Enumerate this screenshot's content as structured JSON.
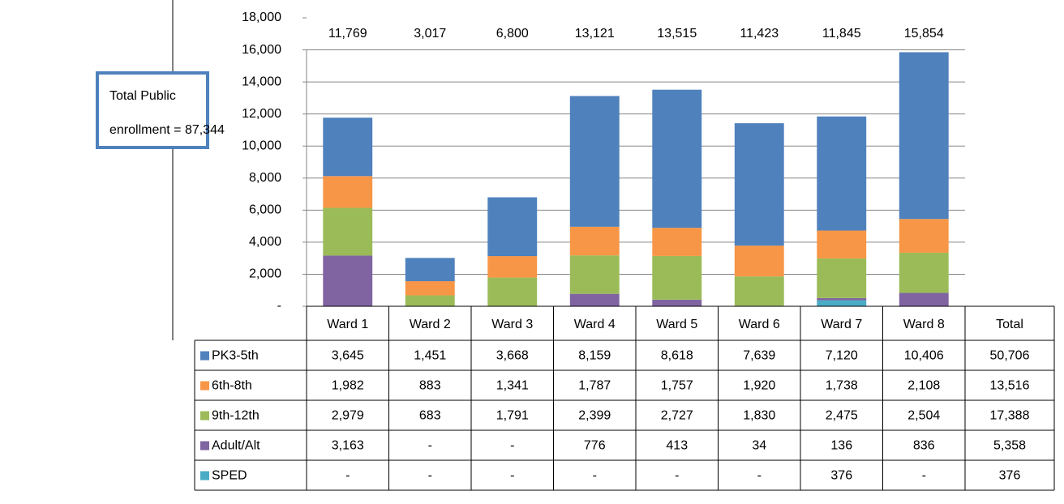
{
  "chart_data": {
    "type": "stacked_bar",
    "categories": [
      "Ward 1",
      "Ward 2",
      "Ward 3",
      "Ward 4",
      "Ward 5",
      "Ward 6",
      "Ward 7",
      "Ward 8"
    ],
    "series": [
      {
        "name": "PK3-5th",
        "color": "#4f81bd",
        "values": [
          3645,
          1451,
          3668,
          8159,
          8618,
          7639,
          7120,
          10406
        ],
        "value_labels": [
          "3,645",
          "1,451",
          "3,668",
          "8,159",
          "8,618",
          "7,639",
          "7,120",
          "10,406"
        ],
        "total": 50706,
        "total_label": "50,706"
      },
      {
        "name": "6th-8th",
        "color": "#f79646",
        "values": [
          1982,
          883,
          1341,
          1787,
          1757,
          1920,
          1738,
          2108
        ],
        "value_labels": [
          "1,982",
          "883",
          "1,341",
          "1,787",
          "1,757",
          "1,920",
          "1,738",
          "2,108"
        ],
        "total": 13516,
        "total_label": "13,516"
      },
      {
        "name": "9th-12th",
        "color": "#9bbb59",
        "values": [
          2979,
          683,
          1791,
          2399,
          2727,
          1830,
          2475,
          2504
        ],
        "value_labels": [
          "2,979",
          "683",
          "1,791",
          "2,399",
          "2,727",
          "1,830",
          "2,475",
          "2,504"
        ],
        "total": 17388,
        "total_label": "17,388"
      },
      {
        "name": "Adult/Alt",
        "color": "#8064a2",
        "values": [
          3163,
          0,
          0,
          776,
          413,
          34,
          136,
          836
        ],
        "value_labels": [
          "3,163",
          "-",
          "-",
          "776",
          "413",
          "34",
          "136",
          "836"
        ],
        "total": 5358,
        "total_label": "5,358"
      },
      {
        "name": "SPED",
        "color": "#4bacc6",
        "values": [
          0,
          0,
          0,
          0,
          0,
          0,
          376,
          0
        ],
        "value_labels": [
          "-",
          "-",
          "-",
          "-",
          "-",
          "-",
          "376",
          "-"
        ],
        "total": 376,
        "total_label": "376"
      }
    ],
    "totals": [
      11769,
      3017,
      6800,
      13121,
      13515,
      11423,
      11845,
      15854
    ],
    "totals_labels": [
      "11,769",
      "3,017",
      "6,800",
      "13,121",
      "13,515",
      "11,423",
      "11,845",
      "15,854"
    ],
    "total_header": "Total",
    "annotation": [
      "Total Public",
      "enrollment = 87,344"
    ],
    "ylim": [
      0,
      18000
    ],
    "yticks": [
      {
        "value": 0,
        "label": "-"
      },
      {
        "value": 2000,
        "label": "2,000"
      },
      {
        "value": 4000,
        "label": "4,000"
      },
      {
        "value": 6000,
        "label": "6,000"
      },
      {
        "value": 8000,
        "label": "8,000"
      },
      {
        "value": 10000,
        "label": "10,000"
      },
      {
        "value": 12000,
        "label": "12,000"
      },
      {
        "value": 14000,
        "label": "14,000"
      },
      {
        "value": 16000,
        "label": "16,000"
      },
      {
        "value": 18000,
        "label": "18,000"
      }
    ],
    "grid": true
  }
}
